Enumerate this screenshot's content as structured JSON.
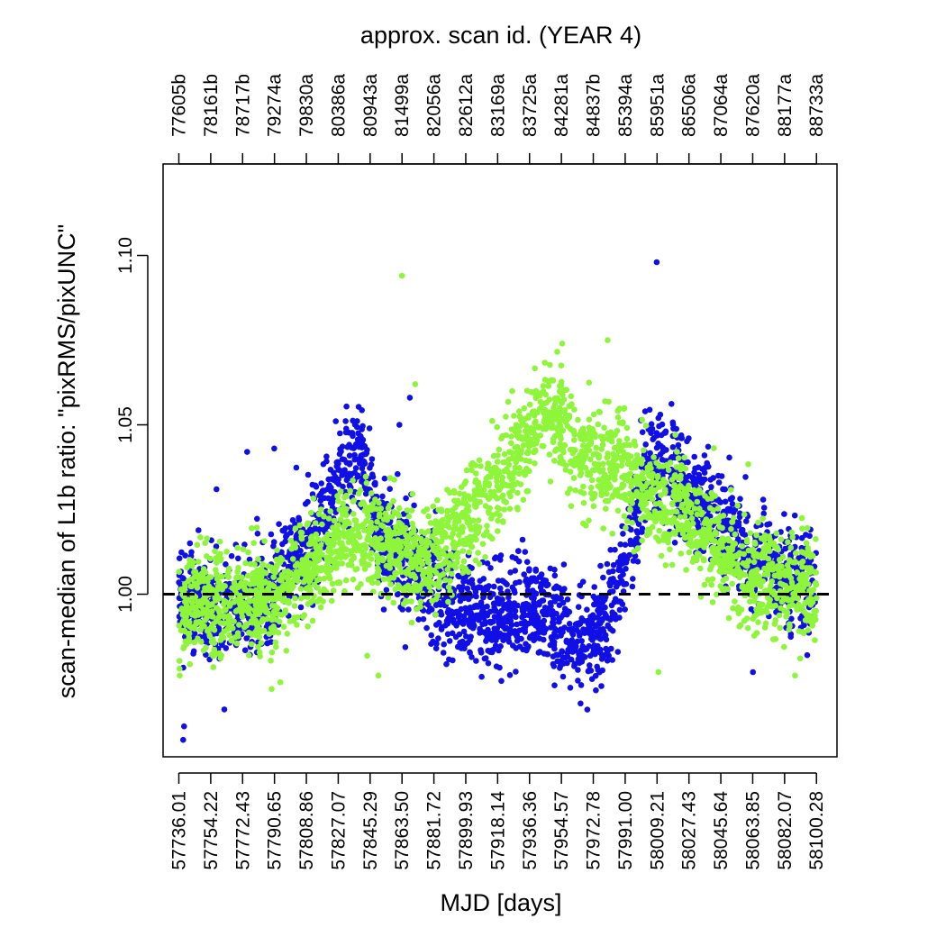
{
  "chart_data": {
    "type": "scatter",
    "top_title": "approx. scan id. (YEAR 4)",
    "xlabel": "MJD [days]",
    "ylabel": "scan-median of L1b ratio: \"pixRMS/pixUNC\"",
    "xlim": [
      57727,
      58112
    ],
    "ylim": [
      0.952,
      1.127
    ],
    "bottom_ticks": [
      {
        "value": 57736.01,
        "label": "57736.01"
      },
      {
        "value": 57754.22,
        "label": "57754.22"
      },
      {
        "value": 57772.43,
        "label": "57772.43"
      },
      {
        "value": 57790.65,
        "label": "57790.65"
      },
      {
        "value": 57808.86,
        "label": "57808.86"
      },
      {
        "value": 57827.07,
        "label": "57827.07"
      },
      {
        "value": 57845.29,
        "label": "57845.29"
      },
      {
        "value": 57863.5,
        "label": "57863.50"
      },
      {
        "value": 57881.72,
        "label": "57881.72"
      },
      {
        "value": 57899.93,
        "label": "57899.93"
      },
      {
        "value": 57918.14,
        "label": "57918.14"
      },
      {
        "value": 57936.36,
        "label": "57936.36"
      },
      {
        "value": 57954.57,
        "label": "57954.57"
      },
      {
        "value": 57972.78,
        "label": "57972.78"
      },
      {
        "value": 57991.0,
        "label": "57991.00"
      },
      {
        "value": 58009.21,
        "label": "58009.21"
      },
      {
        "value": 58027.43,
        "label": "58027.43"
      },
      {
        "value": 58045.64,
        "label": "58045.64"
      },
      {
        "value": 58063.85,
        "label": "58063.85"
      },
      {
        "value": 58082.07,
        "label": "58082.07"
      },
      {
        "value": 58100.28,
        "label": "58100.28"
      }
    ],
    "top_ticks": [
      {
        "value": 57736.01,
        "label": "77605b"
      },
      {
        "value": 57754.22,
        "label": "78161b"
      },
      {
        "value": 57772.43,
        "label": "78717b"
      },
      {
        "value": 57790.65,
        "label": "79274a"
      },
      {
        "value": 57808.86,
        "label": "79830a"
      },
      {
        "value": 57827.07,
        "label": "80386a"
      },
      {
        "value": 57845.29,
        "label": "80943a"
      },
      {
        "value": 57863.5,
        "label": "81499a"
      },
      {
        "value": 57881.72,
        "label": "82056a"
      },
      {
        "value": 57899.93,
        "label": "82612a"
      },
      {
        "value": 57918.14,
        "label": "83169a"
      },
      {
        "value": 57936.36,
        "label": "83725a"
      },
      {
        "value": 57954.57,
        "label": "84281a"
      },
      {
        "value": 57972.78,
        "label": "84837b"
      },
      {
        "value": 57991.0,
        "label": "85394a"
      },
      {
        "value": 58009.21,
        "label": "85951a"
      },
      {
        "value": 58027.43,
        "label": "86506a"
      },
      {
        "value": 58045.64,
        "label": "87064a"
      },
      {
        "value": 58063.85,
        "label": "87620a"
      },
      {
        "value": 58082.07,
        "label": "88177a"
      },
      {
        "value": 58100.28,
        "label": "88733a"
      }
    ],
    "y_ticks": [
      {
        "value": 1.0,
        "label": "1.00"
      },
      {
        "value": 1.05,
        "label": "1.05"
      },
      {
        "value": 1.1,
        "label": "1.10"
      }
    ],
    "reference_line": {
      "y": 1.0,
      "style": "dashed",
      "color": "#000000"
    },
    "grid": false,
    "series": [
      {
        "color": "#1010e6",
        "trend": [
          [
            57736,
            0.998
          ],
          [
            57760,
            0.995
          ],
          [
            57785,
            0.998
          ],
          [
            57800,
            1.008
          ],
          [
            57815,
            1.02
          ],
          [
            57830,
            1.035
          ],
          [
            57840,
            1.04
          ],
          [
            57850,
            1.02
          ],
          [
            57860,
            1.012
          ],
          [
            57870,
            1.008
          ],
          [
            57885,
            0.998
          ],
          [
            57900,
            0.995
          ],
          [
            57915,
            0.992
          ],
          [
            57930,
            0.995
          ],
          [
            57945,
            0.995
          ],
          [
            57960,
            0.985
          ],
          [
            57975,
            0.988
          ],
          [
            57985,
            1.0
          ],
          [
            57995,
            1.018
          ],
          [
            58005,
            1.04
          ],
          [
            58015,
            1.04
          ],
          [
            58025,
            1.03
          ],
          [
            58040,
            1.025
          ],
          [
            58055,
            1.015
          ],
          [
            58070,
            1.008
          ],
          [
            58085,
            1.004
          ],
          [
            58100,
            1.002
          ]
        ],
        "outliers": [
          [
            57738.5,
            0.957
          ],
          [
            57739,
            0.961
          ],
          [
            57762,
            0.966
          ],
          [
            57757.5,
            1.031
          ],
          [
            57775,
            1.042
          ],
          [
            57790.5,
            1.043
          ],
          [
            57868,
            1.058
          ],
          [
            57862,
            1.05
          ],
          [
            58009,
            1.098
          ],
          [
            58064,
            0.977
          ],
          [
            58095,
            0.982
          ]
        ]
      },
      {
        "color": "#8ef53a",
        "trend": [
          [
            57736,
            0.995
          ],
          [
            57760,
            0.997
          ],
          [
            57785,
            0.998
          ],
          [
            57800,
            1.003
          ],
          [
            57815,
            1.01
          ],
          [
            57830,
            1.016
          ],
          [
            57845,
            1.018
          ],
          [
            57860,
            1.012
          ],
          [
            57875,
            1.01
          ],
          [
            57890,
            1.015
          ],
          [
            57905,
            1.025
          ],
          [
            57920,
            1.035
          ],
          [
            57935,
            1.045
          ],
          [
            57945,
            1.055
          ],
          [
            57955,
            1.05
          ],
          [
            57965,
            1.042
          ],
          [
            57975,
            1.04
          ],
          [
            57985,
            1.038
          ],
          [
            57995,
            1.035
          ],
          [
            58005,
            1.03
          ],
          [
            58020,
            1.025
          ],
          [
            58035,
            1.018
          ],
          [
            58050,
            1.01
          ],
          [
            58065,
            1.005
          ],
          [
            58080,
            1.002
          ],
          [
            58100,
            1.002
          ]
        ],
        "outliers": [
          [
            57863.5,
            1.094
          ],
          [
            57871,
            1.062
          ],
          [
            57981,
            1.075
          ],
          [
            57955,
            1.074
          ],
          [
            58010,
            0.977
          ],
          [
            57789,
            0.972
          ],
          [
            57794,
            0.974
          ],
          [
            58088,
            0.976
          ],
          [
            57736.5,
            0.976
          ],
          [
            57850,
            0.976
          ]
        ]
      }
    ]
  }
}
